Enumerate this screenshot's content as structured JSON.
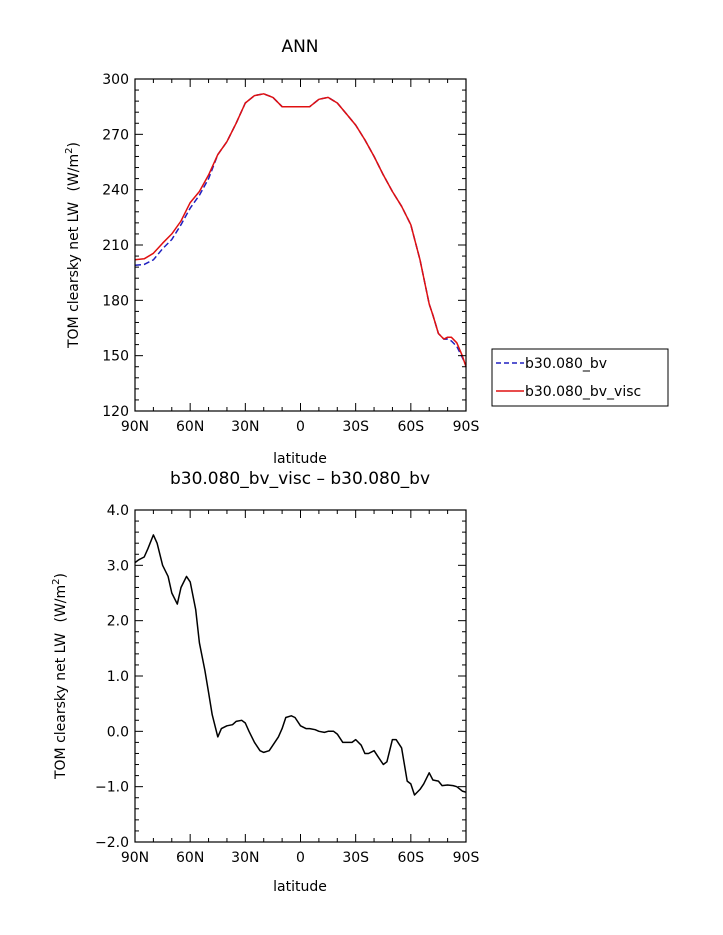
{
  "chart_data": [
    {
      "type": "line",
      "title": "ANN",
      "xlabel": "latitude",
      "ylabel": "TOM clearsky net LW",
      "ylabel_unit": "(W/m",
      "ylabel_unit_sup": "2",
      "ylabel_unit_close": ")",
      "xlim": [
        90,
        -90
      ],
      "ylim": [
        120,
        300
      ],
      "xticks": [
        90,
        60,
        30,
        0,
        -30,
        -60,
        -90
      ],
      "xtick_labels": [
        "90N",
        "60N",
        "30N",
        "0",
        "30S",
        "60S",
        "90S"
      ],
      "yticks": [
        120,
        150,
        180,
        210,
        240,
        270,
        300
      ],
      "ytick_labels": [
        "120",
        "150",
        "180",
        "210",
        "240",
        "270",
        "300"
      ],
      "grid": false,
      "legend_position": "right",
      "series": [
        {
          "name": "b30.080_bv",
          "color": "#2020c0",
          "style": "dashed",
          "x": [
            90,
            85,
            80,
            75,
            70,
            65,
            60,
            55,
            50,
            45,
            40,
            35,
            30,
            25,
            20,
            15,
            10,
            5,
            0,
            -5,
            -10,
            -15,
            -20,
            -25,
            -30,
            -35,
            -40,
            -45,
            -50,
            -55,
            -60,
            -65,
            -70,
            -72,
            -75,
            -78,
            -80,
            -82,
            -85,
            -88,
            -90
          ],
          "y": [
            199,
            199.5,
            202,
            208,
            213,
            221,
            230,
            237,
            246,
            259,
            266,
            276,
            287,
            291,
            292,
            290,
            285,
            285,
            285,
            285,
            289,
            290,
            287,
            281,
            275,
            267,
            258,
            248,
            239,
            231,
            221,
            202,
            178,
            172,
            162,
            159,
            159,
            158,
            155,
            149,
            145
          ]
        },
        {
          "name": "b30.080_bv_visc",
          "color": "#e01010",
          "style": "solid",
          "x": [
            90,
            85,
            80,
            75,
            70,
            65,
            60,
            55,
            50,
            45,
            40,
            35,
            30,
            25,
            20,
            15,
            10,
            5,
            0,
            -5,
            -10,
            -15,
            -20,
            -25,
            -30,
            -35,
            -40,
            -45,
            -50,
            -55,
            -60,
            -65,
            -70,
            -72,
            -75,
            -78,
            -80,
            -82,
            -85,
            -88,
            -90
          ],
          "y": [
            202,
            202.5,
            205.5,
            211,
            216,
            223,
            233,
            239,
            248,
            259,
            266,
            276,
            287,
            291,
            292,
            290,
            285,
            285,
            285,
            285,
            289,
            290,
            287,
            281,
            275,
            267,
            258,
            248,
            239,
            231,
            221,
            202,
            178,
            172,
            162,
            159,
            160,
            160,
            157,
            150,
            144
          ]
        }
      ]
    },
    {
      "type": "line",
      "title": "b30.080_bv_visc – b30.080_bv",
      "xlabel": "latitude",
      "ylabel": "TOM clearsky net LW",
      "ylabel_unit": "(W/m",
      "ylabel_unit_sup": "2",
      "ylabel_unit_close": ")",
      "xlim": [
        90,
        -90
      ],
      "ylim": [
        -2.0,
        4.0
      ],
      "xticks": [
        90,
        60,
        30,
        0,
        -30,
        -60,
        -90
      ],
      "xtick_labels": [
        "90N",
        "60N",
        "30N",
        "0",
        "30S",
        "60S",
        "90S"
      ],
      "yticks": [
        -2,
        -1,
        0,
        1,
        2,
        3,
        4
      ],
      "ytick_labels": [
        "−2.0",
        "−1.0",
        "0.0",
        "1.0",
        "2.0",
        "3.0",
        "4.0"
      ],
      "grid": false,
      "series": [
        {
          "color": "#000000",
          "style": "solid",
          "x": [
            90,
            88,
            85,
            83,
            80,
            78,
            75,
            72,
            70,
            67,
            65,
            62,
            60,
            57,
            55,
            52,
            50,
            48,
            45,
            43,
            40,
            37,
            35,
            32,
            30,
            28,
            25,
            22,
            20,
            17,
            15,
            12,
            10,
            8,
            5,
            3,
            0,
            -3,
            -5,
            -8,
            -10,
            -13,
            -15,
            -18,
            -20,
            -23,
            -25,
            -28,
            -30,
            -33,
            -35,
            -37,
            -40,
            -42,
            -45,
            -47,
            -50,
            -52,
            -55,
            -58,
            -60,
            -62,
            -65,
            -67,
            -70,
            -72,
            -75,
            -77,
            -80,
            -83,
            -85,
            -88,
            -90
          ],
          "y": [
            3.05,
            3.1,
            3.15,
            3.3,
            3.55,
            3.4,
            3.0,
            2.8,
            2.5,
            2.3,
            2.6,
            2.8,
            2.7,
            2.2,
            1.6,
            1.1,
            0.7,
            0.3,
            -0.1,
            0.05,
            0.1,
            0.12,
            0.18,
            0.2,
            0.15,
            0.0,
            -0.2,
            -0.35,
            -0.38,
            -0.35,
            -0.25,
            -0.1,
            0.05,
            0.25,
            0.28,
            0.25,
            0.1,
            0.05,
            0.05,
            0.03,
            0.0,
            -0.02,
            0.0,
            0.0,
            -0.05,
            -0.2,
            -0.2,
            -0.2,
            -0.15,
            -0.25,
            -0.4,
            -0.4,
            -0.35,
            -0.45,
            -0.6,
            -0.55,
            -0.15,
            -0.15,
            -0.3,
            -0.9,
            -0.95,
            -1.15,
            -1.05,
            -0.95,
            -0.75,
            -0.88,
            -0.9,
            -0.98,
            -0.97,
            -0.98,
            -1.0,
            -1.08,
            -1.1
          ]
        }
      ]
    }
  ]
}
